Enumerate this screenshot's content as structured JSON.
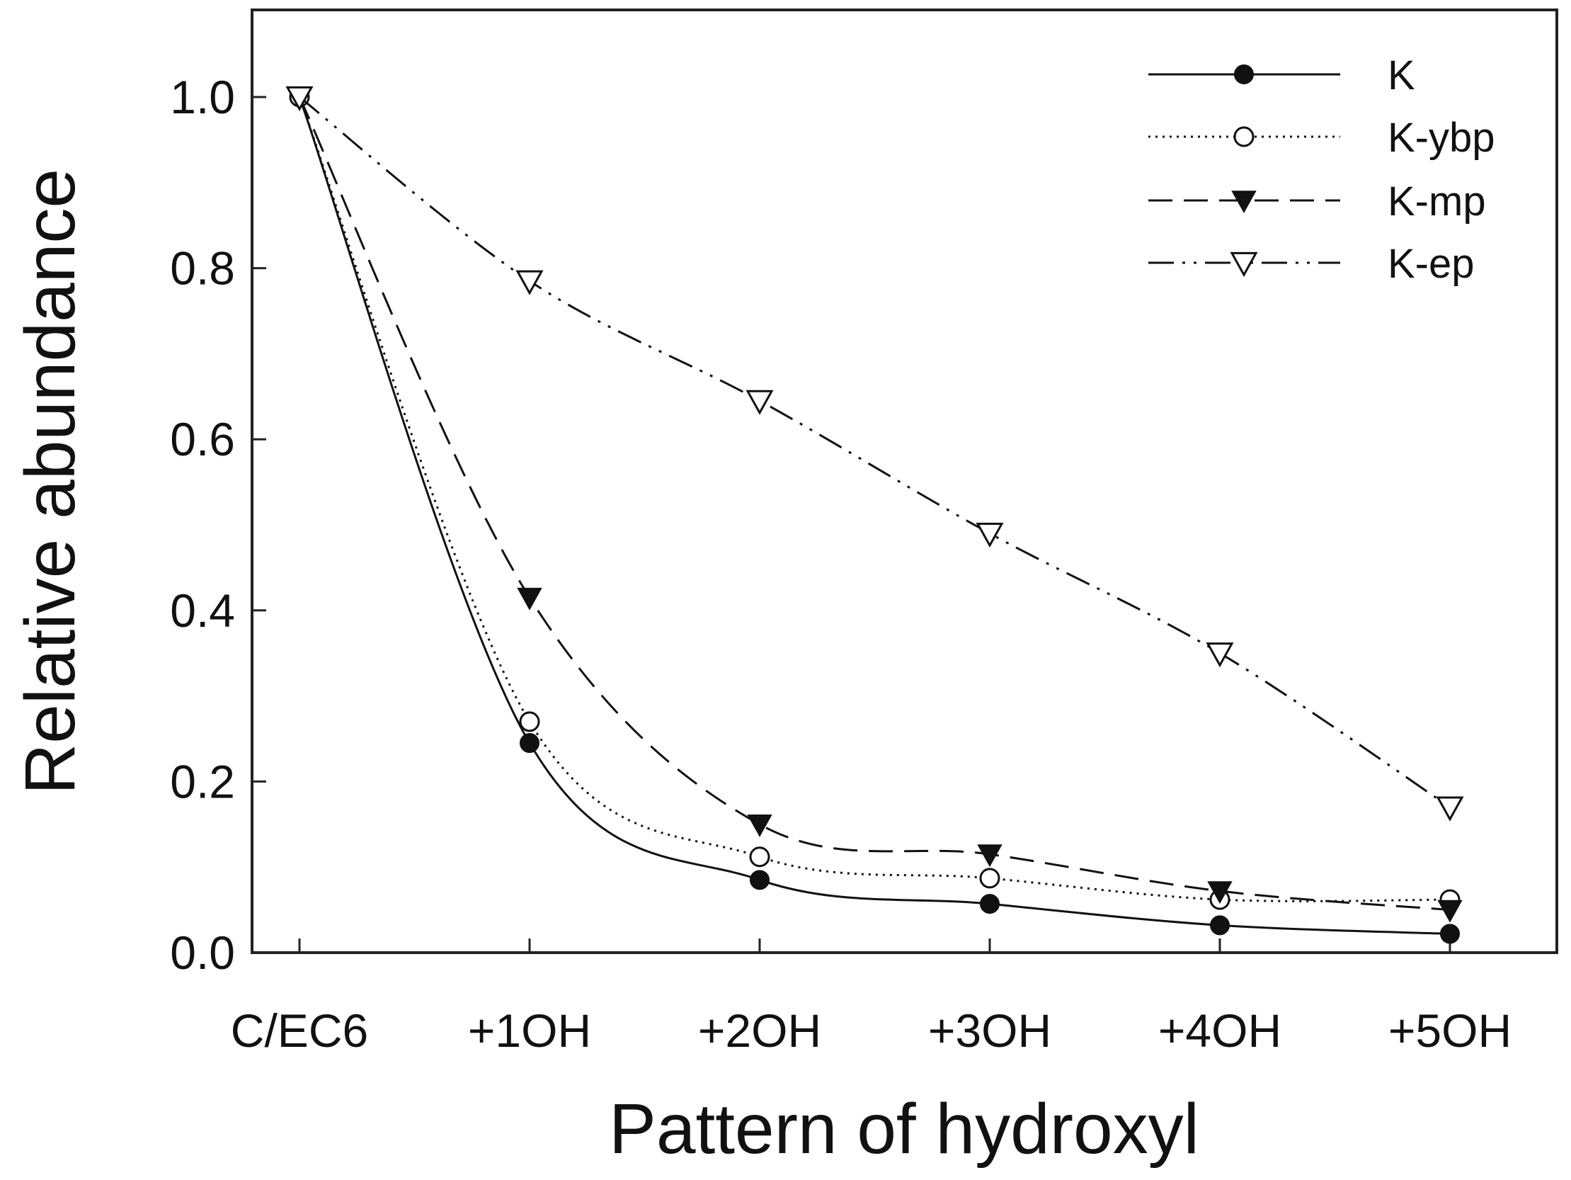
{
  "chart_data": {
    "type": "line",
    "title": "",
    "xlabel": "Pattern of hydroxyl",
    "ylabel": "Relative abundance",
    "categories": [
      "C/EC6",
      "+1OH",
      "+2OH",
      "+3OH",
      "+4OH",
      "+5OH"
    ],
    "ylim": [
      0,
      1.1
    ],
    "yticks": [
      0.0,
      0.2,
      0.4,
      0.6,
      0.8,
      1.0
    ],
    "ytick_labels": [
      "0.0",
      "0.2",
      "0.4",
      "0.6",
      "0.8",
      "1.0"
    ],
    "grid": false,
    "legend_position": "top-right",
    "series": [
      {
        "name": "K",
        "marker": "filled-circle",
        "line_style": "solid",
        "values": [
          1.0,
          0.245,
          0.085,
          0.057,
          0.032,
          0.022
        ]
      },
      {
        "name": "K-ybp",
        "marker": "open-circle",
        "line_style": "dotted",
        "values": [
          1.0,
          0.27,
          0.112,
          0.087,
          0.062,
          0.062
        ]
      },
      {
        "name": "K-mp",
        "marker": "filled-triangle-down",
        "line_style": "dashed",
        "values": [
          1.0,
          0.415,
          0.15,
          0.115,
          0.072,
          0.05
        ]
      },
      {
        "name": "K-ep",
        "marker": "open-triangle-down",
        "line_style": "dash-dot-dot",
        "values": [
          1.0,
          0.785,
          0.645,
          0.49,
          0.35,
          0.17
        ]
      }
    ]
  }
}
